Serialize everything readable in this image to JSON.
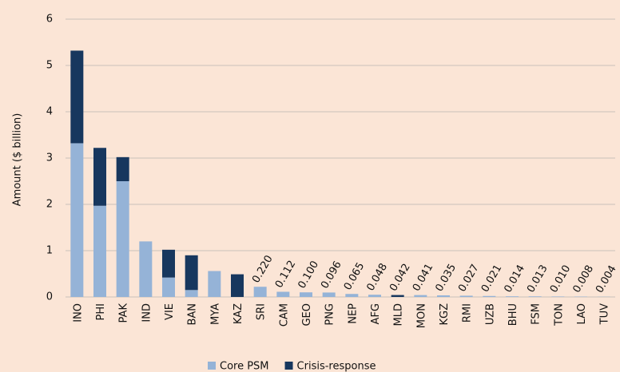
{
  "chart_data": {
    "type": "stacked-bar",
    "y_label": "Amount ($ billion)",
    "categories": [
      "INO",
      "PHI",
      "PAK",
      "IND",
      "VIE",
      "BAN",
      "MYA",
      "KAZ",
      "SRI",
      "CAM",
      "GEO",
      "PNG",
      "NEP",
      "AFG",
      "MLD",
      "MON",
      "KGZ",
      "RMI",
      "UZB",
      "BHU",
      "FSM",
      "TON",
      "LAO",
      "TUV"
    ],
    "series": [
      {
        "name": "Core PSM",
        "color": "#95b3d7",
        "values": [
          3.32,
          1.97,
          2.5,
          1.2,
          0.42,
          0.15,
          0.56,
          0,
          0.22,
          0.112,
          0.1,
          0.096,
          0.065,
          0.048,
          0,
          0.041,
          0.035,
          0.027,
          0.021,
          0.014,
          0.013,
          0.01,
          0.008,
          0.004
        ],
        "value_labels": [
          null,
          null,
          null,
          null,
          null,
          null,
          null,
          null,
          "0.220",
          "0.112",
          "0.100",
          "0.096",
          "0.065",
          "0.048",
          null,
          "0.041",
          "0.035",
          "0.027",
          "0.021",
          "0.014",
          "0.013",
          "0.010",
          "0.008",
          "0.004"
        ]
      },
      {
        "name": "Crisis-response",
        "color": "#17375e",
        "values": [
          2.0,
          1.25,
          0.52,
          0,
          0.6,
          0.75,
          0,
          0.49,
          0,
          0,
          0,
          0,
          0,
          0,
          0.042,
          0,
          0,
          0,
          0,
          0,
          0,
          0,
          0,
          0
        ],
        "value_labels": [
          null,
          null,
          null,
          null,
          null,
          null,
          null,
          null,
          null,
          null,
          null,
          null,
          null,
          null,
          "0.042",
          null,
          null,
          null,
          null,
          null,
          null,
          null,
          null,
          null
        ]
      }
    ],
    "ylim": [
      0,
      6
    ],
    "yticks": [
      0,
      1,
      2,
      3,
      4,
      5,
      6
    ],
    "grid": true
  }
}
